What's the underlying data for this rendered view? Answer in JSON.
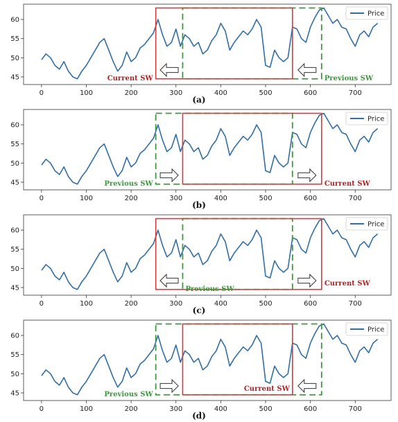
{
  "chart_data": [
    {
      "type": "line",
      "caption": "(a)",
      "legend": "Price",
      "series": [
        {
          "name": "Price"
        }
      ],
      "xlim": [
        -40,
        780
      ],
      "ylim": [
        43,
        64
      ],
      "xticks": [
        0,
        100,
        200,
        300,
        400,
        500,
        600,
        700
      ],
      "yticks": [
        45,
        50,
        55,
        60
      ],
      "x": [
        0,
        10,
        20,
        30,
        40,
        50,
        60,
        70,
        80,
        90,
        100,
        110,
        120,
        130,
        140,
        150,
        160,
        170,
        180,
        190,
        200,
        210,
        220,
        230,
        240,
        250,
        260,
        270,
        280,
        290,
        300,
        310,
        320,
        330,
        340,
        350,
        360,
        370,
        380,
        390,
        400,
        410,
        420,
        430,
        440,
        450,
        460,
        470,
        480,
        490,
        500,
        510,
        520,
        530,
        540,
        550,
        560,
        570,
        580,
        590,
        600,
        610,
        620,
        630,
        640,
        650,
        660,
        670,
        680,
        690,
        700,
        710,
        720,
        730,
        740,
        750
      ],
      "y": [
        49.5,
        51,
        50,
        48,
        47,
        49,
        46.5,
        45,
        44.5,
        46.5,
        48,
        50,
        52,
        54,
        55,
        52,
        49,
        46.5,
        48,
        51.5,
        49,
        50,
        52.5,
        53.5,
        55,
        56.5,
        60,
        56,
        53,
        54,
        57.5,
        53,
        56,
        55,
        53,
        54,
        51,
        52,
        54.5,
        56,
        59,
        57,
        52,
        54,
        55.5,
        57,
        56,
        57.5,
        60,
        58,
        48,
        47.5,
        52,
        50,
        49,
        50,
        58,
        57.5,
        55,
        54,
        58,
        60.5,
        62.5,
        63,
        61,
        59,
        60,
        58,
        57.5,
        55,
        53,
        56,
        57,
        55.5,
        58,
        59
      ],
      "windows": [
        {
          "label": "Current SW",
          "x": [
            255,
            560
          ],
          "color": "#d33a3a",
          "style": "solid"
        },
        {
          "label": "Previous SW",
          "x": [
            315,
            625
          ],
          "color": "#3a9a3a",
          "style": "dashed"
        }
      ],
      "arrows": [
        "left",
        "left"
      ]
    },
    {
      "type": "line",
      "caption": "(b)",
      "legend": "Price",
      "series": [
        {
          "name": "Price"
        }
      ],
      "xlim": [
        -40,
        780
      ],
      "ylim": [
        43,
        64
      ],
      "xticks": [
        0,
        100,
        200,
        300,
        400,
        500,
        600,
        700
      ],
      "yticks": [
        45,
        50,
        55,
        60
      ],
      "x": [
        0,
        10,
        20,
        30,
        40,
        50,
        60,
        70,
        80,
        90,
        100,
        110,
        120,
        130,
        140,
        150,
        160,
        170,
        180,
        190,
        200,
        210,
        220,
        230,
        240,
        250,
        260,
        270,
        280,
        290,
        300,
        310,
        320,
        330,
        340,
        350,
        360,
        370,
        380,
        390,
        400,
        410,
        420,
        430,
        440,
        450,
        460,
        470,
        480,
        490,
        500,
        510,
        520,
        530,
        540,
        550,
        560,
        570,
        580,
        590,
        600,
        610,
        620,
        630,
        640,
        650,
        660,
        670,
        680,
        690,
        700,
        710,
        720,
        730,
        740,
        750
      ],
      "y": [
        49.5,
        51,
        50,
        48,
        47,
        49,
        46.5,
        45,
        44.5,
        46.5,
        48,
        50,
        52,
        54,
        55,
        52,
        49,
        46.5,
        48,
        51.5,
        49,
        50,
        52.5,
        53.5,
        55,
        56.5,
        60,
        56,
        53,
        54,
        57.5,
        53,
        56,
        55,
        53,
        54,
        51,
        52,
        54.5,
        56,
        59,
        57,
        52,
        54,
        55.5,
        57,
        56,
        57.5,
        60,
        58,
        48,
        47.5,
        52,
        50,
        49,
        50,
        58,
        57.5,
        55,
        54,
        58,
        60.5,
        62.5,
        63,
        61,
        59,
        60,
        58,
        57.5,
        55,
        53,
        56,
        57,
        55.5,
        58,
        59
      ],
      "windows": [
        {
          "label": "Previous SW",
          "x": [
            255,
            560
          ],
          "color": "#3a9a3a",
          "style": "dashed"
        },
        {
          "label": "Current SW",
          "x": [
            315,
            625
          ],
          "color": "#d33a3a",
          "style": "solid"
        }
      ],
      "arrows": [
        "right",
        "right"
      ]
    },
    {
      "type": "line",
      "caption": "(c)",
      "legend": "Price",
      "series": [
        {
          "name": "Price"
        }
      ],
      "xlim": [
        -40,
        780
      ],
      "ylim": [
        43,
        64
      ],
      "xticks": [
        0,
        100,
        200,
        300,
        400,
        500,
        600,
        700
      ],
      "yticks": [
        45,
        50,
        55,
        60
      ],
      "x": [
        0,
        10,
        20,
        30,
        40,
        50,
        60,
        70,
        80,
        90,
        100,
        110,
        120,
        130,
        140,
        150,
        160,
        170,
        180,
        190,
        200,
        210,
        220,
        230,
        240,
        250,
        260,
        270,
        280,
        290,
        300,
        310,
        320,
        330,
        340,
        350,
        360,
        370,
        380,
        390,
        400,
        410,
        420,
        430,
        440,
        450,
        460,
        470,
        480,
        490,
        500,
        510,
        520,
        530,
        540,
        550,
        560,
        570,
        580,
        590,
        600,
        610,
        620,
        630,
        640,
        650,
        660,
        670,
        680,
        690,
        700,
        710,
        720,
        730,
        740,
        750
      ],
      "y": [
        49.5,
        51,
        50,
        48,
        47,
        49,
        46.5,
        45,
        44.5,
        46.5,
        48,
        50,
        52,
        54,
        55,
        52,
        49,
        46.5,
        48,
        51.5,
        49,
        50,
        52.5,
        53.5,
        55,
        56.5,
        60,
        56,
        53,
        54,
        57.5,
        53,
        56,
        55,
        53,
        54,
        51,
        52,
        54.5,
        56,
        59,
        57,
        52,
        54,
        55.5,
        57,
        56,
        57.5,
        60,
        58,
        48,
        47.5,
        52,
        50,
        49,
        50,
        58,
        57.5,
        55,
        54,
        58,
        60.5,
        62.5,
        63,
        61,
        59,
        60,
        58,
        57.5,
        55,
        53,
        56,
        57,
        55.5,
        58,
        59
      ],
      "windows": [
        {
          "label": "Current SW",
          "x": [
            255,
            625
          ],
          "color": "#d33a3a",
          "style": "solid"
        },
        {
          "label": "Previous SW",
          "x": [
            315,
            560
          ],
          "color": "#3a9a3a",
          "style": "dashed"
        }
      ],
      "arrows": [
        "left",
        "right"
      ]
    },
    {
      "type": "line",
      "caption": "(d)",
      "legend": "Price",
      "series": [
        {
          "name": "Price"
        }
      ],
      "xlim": [
        -40,
        780
      ],
      "ylim": [
        43,
        64
      ],
      "xticks": [
        0,
        100,
        200,
        300,
        400,
        500,
        600,
        700
      ],
      "yticks": [
        45,
        50,
        55,
        60
      ],
      "x": [
        0,
        10,
        20,
        30,
        40,
        50,
        60,
        70,
        80,
        90,
        100,
        110,
        120,
        130,
        140,
        150,
        160,
        170,
        180,
        190,
        200,
        210,
        220,
        230,
        240,
        250,
        260,
        270,
        280,
        290,
        300,
        310,
        320,
        330,
        340,
        350,
        360,
        370,
        380,
        390,
        400,
        410,
        420,
        430,
        440,
        450,
        460,
        470,
        480,
        490,
        500,
        510,
        520,
        530,
        540,
        550,
        560,
        570,
        580,
        590,
        600,
        610,
        620,
        630,
        640,
        650,
        660,
        670,
        680,
        690,
        700,
        710,
        720,
        730,
        740,
        750
      ],
      "y": [
        49.5,
        51,
        50,
        48,
        47,
        49,
        46.5,
        45,
        44.5,
        46.5,
        48,
        50,
        52,
        54,
        55,
        52,
        49,
        46.5,
        48,
        51.5,
        49,
        50,
        52.5,
        53.5,
        55,
        56.5,
        60,
        56,
        53,
        54,
        57.5,
        53,
        56,
        55,
        53,
        54,
        51,
        52,
        54.5,
        56,
        59,
        57,
        52,
        54,
        55.5,
        57,
        56,
        57.5,
        60,
        58,
        48,
        47.5,
        52,
        50,
        49,
        50,
        58,
        57.5,
        55,
        54,
        58,
        60.5,
        62.5,
        63,
        61,
        59,
        60,
        58,
        57.5,
        55,
        53,
        56,
        57,
        55.5,
        58,
        59
      ],
      "windows": [
        {
          "label": "Previous SW",
          "x": [
            255,
            625
          ],
          "color": "#3a9a3a",
          "style": "dashed"
        },
        {
          "label": "Current SW",
          "x": [
            315,
            560
          ],
          "color": "#d33a3a",
          "style": "solid"
        }
      ],
      "arrows": [
        "right",
        "left"
      ]
    }
  ]
}
